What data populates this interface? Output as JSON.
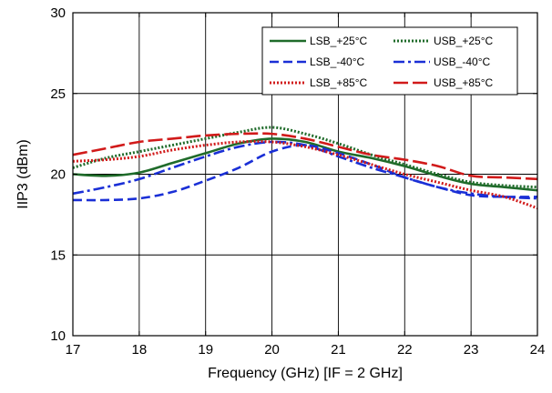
{
  "chart_data": {
    "type": "line",
    "xlabel": "Frequency (GHz) [IF = 2 GHz]",
    "ylabel": "IIP3 (dBm)",
    "xlim": [
      17,
      24
    ],
    "ylim": [
      10,
      30
    ],
    "xticks": [
      17,
      18,
      19,
      20,
      21,
      22,
      23,
      24
    ],
    "yticks": [
      10,
      15,
      20,
      25,
      30
    ],
    "grid": true,
    "legend_position": "top-right",
    "colors": {
      "green": "#1f6b2a",
      "blue": "#1a2fd6",
      "red": "#d11a1a"
    },
    "series": [
      {
        "name": "LSB_+25°C",
        "color": "#1f6b2a",
        "style": "solid",
        "x": [
          17,
          17.5,
          18,
          18.5,
          19,
          19.5,
          20,
          20.5,
          21,
          21.5,
          22,
          22.5,
          23,
          23.5,
          24
        ],
        "y": [
          20.0,
          19.9,
          20.1,
          20.7,
          21.3,
          21.9,
          22.2,
          22.0,
          21.4,
          21.0,
          20.5,
          19.9,
          19.4,
          19.2,
          19.0
        ]
      },
      {
        "name": "USB_+25°C",
        "color": "#1f6b2a",
        "style": "dotted",
        "x": [
          17,
          17.5,
          18,
          18.5,
          19,
          19.5,
          20,
          20.5,
          21,
          21.5,
          22,
          22.5,
          23,
          23.5,
          24
        ],
        "y": [
          20.4,
          21.0,
          21.4,
          21.8,
          22.2,
          22.6,
          22.9,
          22.5,
          21.9,
          21.2,
          20.6,
          20.0,
          19.5,
          19.3,
          19.2
        ]
      },
      {
        "name": "LSB_-40°C",
        "color": "#1a2fd6",
        "style": "dashed",
        "x": [
          17,
          17.5,
          18,
          18.5,
          19,
          19.5,
          20,
          20.5,
          21,
          21.5,
          22,
          22.5,
          23,
          23.5,
          24
        ],
        "y": [
          18.4,
          18.4,
          18.5,
          18.9,
          19.6,
          20.4,
          21.4,
          21.8,
          21.3,
          20.6,
          19.8,
          19.2,
          18.7,
          18.6,
          18.6
        ]
      },
      {
        "name": "USB_-40°C",
        "color": "#1a2fd6",
        "style": "dashdot",
        "x": [
          17,
          17.5,
          18,
          18.5,
          19,
          19.5,
          20,
          20.5,
          21,
          21.5,
          22,
          22.5,
          23,
          23.5,
          24
        ],
        "y": [
          18.8,
          19.2,
          19.7,
          20.4,
          21.1,
          21.7,
          22.0,
          21.8,
          21.1,
          20.4,
          19.8,
          19.2,
          18.8,
          18.6,
          18.5
        ]
      },
      {
        "name": "LSB_+85°C",
        "color": "#d11a1a",
        "style": "dotted",
        "x": [
          17,
          17.5,
          18,
          18.5,
          19,
          19.5,
          20,
          20.5,
          21,
          21.5,
          22,
          22.5,
          23,
          23.5,
          24
        ],
        "y": [
          20.8,
          20.9,
          21.1,
          21.5,
          21.8,
          22.0,
          22.0,
          21.7,
          21.2,
          20.6,
          20.0,
          19.5,
          19.0,
          18.6,
          17.9
        ]
      },
      {
        "name": "USB_+85°C",
        "color": "#d11a1a",
        "style": "longdash",
        "x": [
          17,
          17.5,
          18,
          18.5,
          19,
          19.5,
          20,
          20.5,
          21,
          21.5,
          22,
          22.5,
          23,
          23.5,
          24
        ],
        "y": [
          21.2,
          21.6,
          22.0,
          22.2,
          22.4,
          22.5,
          22.5,
          22.2,
          21.7,
          21.2,
          20.9,
          20.5,
          19.9,
          19.8,
          19.7
        ]
      }
    ]
  }
}
